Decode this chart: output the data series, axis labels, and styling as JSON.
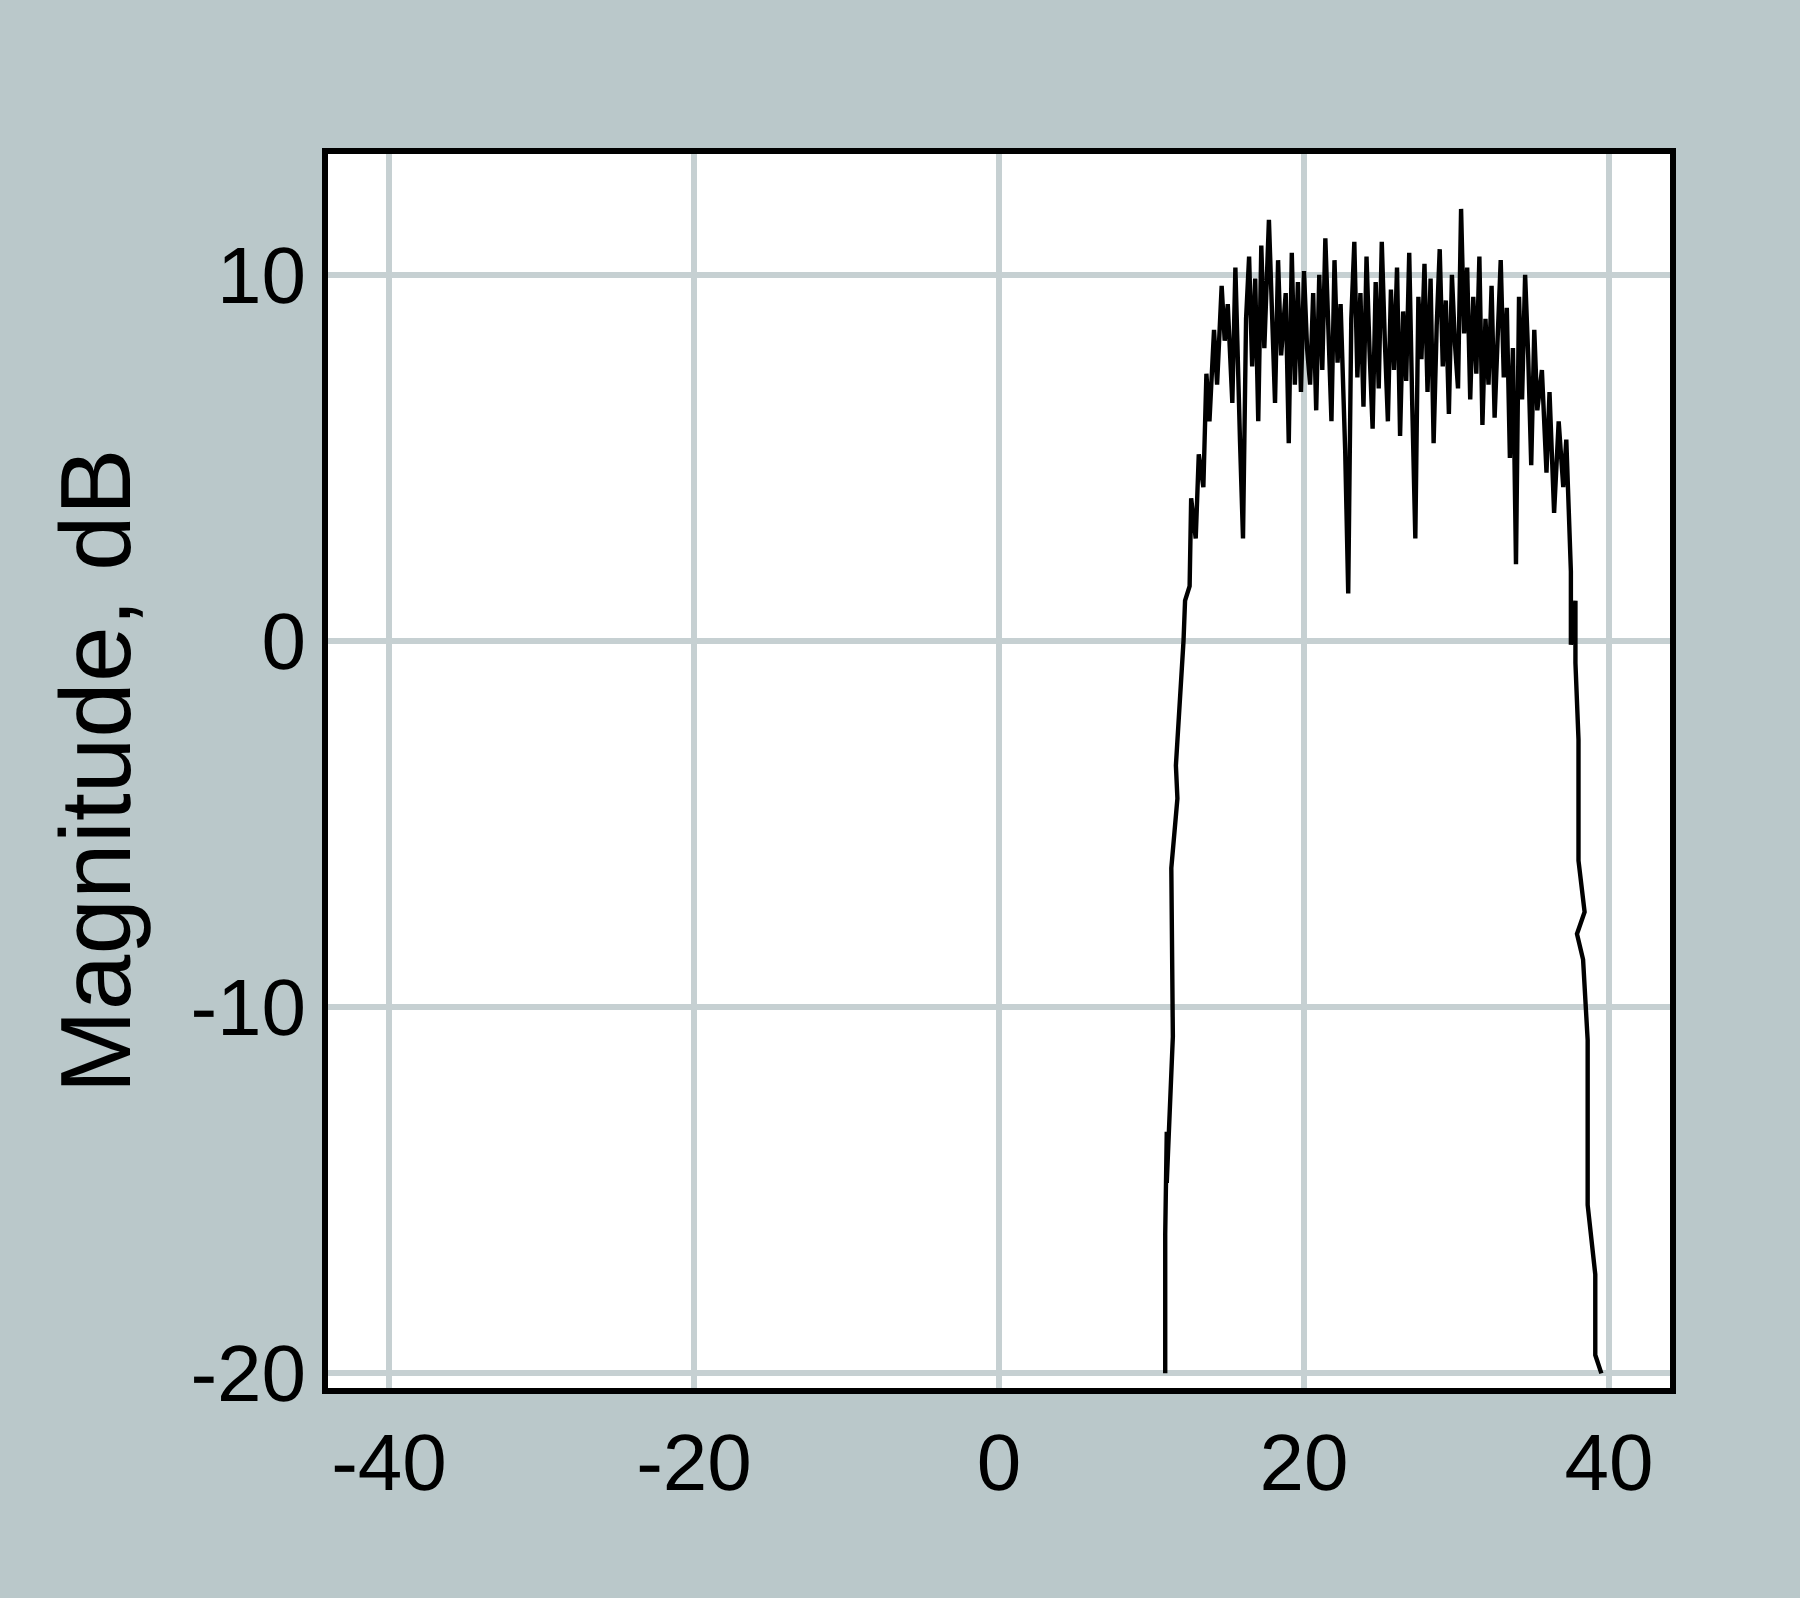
{
  "chart_data": {
    "type": "line",
    "ylabel": "Magnitude, dB",
    "x": [
      10.9,
      10.9,
      11.0,
      11.0,
      11.4,
      11.3,
      11.7,
      11.6,
      12.1,
      12.2,
      12.5,
      12.6,
      12.9,
      13.1,
      13.4,
      13.6,
      13.8,
      14.1,
      14.3,
      14.6,
      14.8,
      15.0,
      15.3,
      15.5,
      15.8,
      16.0,
      16.2,
      16.4,
      16.6,
      16.8,
      17.0,
      17.2,
      17.4,
      17.7,
      17.9,
      18.1,
      18.3,
      18.5,
      18.8,
      19.0,
      19.2,
      19.4,
      19.6,
      19.8,
      20.0,
      20.2,
      20.4,
      20.6,
      20.8,
      21.0,
      21.2,
      21.4,
      21.6,
      21.8,
      22.0,
      22.2,
      22.4,
      22.7,
      22.9,
      23.1,
      23.3,
      23.5,
      23.7,
      23.9,
      24.1,
      24.3,
      24.5,
      24.7,
      24.9,
      25.1,
      25.3,
      25.5,
      25.7,
      25.9,
      26.1,
      26.3,
      26.5,
      26.7,
      26.9,
      27.1,
      27.3,
      27.5,
      27.7,
      27.9,
      28.1,
      28.3,
      28.5,
      28.7,
      28.9,
      29.1,
      29.3,
      29.5,
      29.7,
      29.9,
      30.1,
      30.3,
      30.5,
      30.7,
      30.9,
      31.1,
      31.3,
      31.5,
      31.7,
      31.9,
      32.1,
      32.3,
      32.5,
      32.7,
      32.9,
      33.1,
      33.3,
      33.5,
      33.7,
      33.9,
      34.1,
      34.3,
      34.5,
      34.7,
      34.9,
      35.1,
      35.3,
      35.6,
      35.9,
      36.1,
      36.4,
      36.7,
      37.0,
      37.2,
      37.5,
      37.5,
      37.8,
      37.8,
      38.0,
      38.0,
      38.0,
      38.4,
      37.9,
      38.3,
      38.6,
      38.6,
      39.1,
      39.1,
      39.5
    ],
    "series": [
      {
        "color": "#000000",
        "values": [
          -20,
          -16.2,
          -13.4,
          -14.8,
          -10.8,
          -6.2,
          -4.3,
          -3.4,
          0,
          1.1,
          1.5,
          3.9,
          2.8,
          5.1,
          4.2,
          7.3,
          6.0,
          8.5,
          7.0,
          9.7,
          8.2,
          9.2,
          6.5,
          10.2,
          5.5,
          2.8,
          8.8,
          10.5,
          7.5,
          9.9,
          6.0,
          10.8,
          8.0,
          11.5,
          9.0,
          6.5,
          10.4,
          7.8,
          9.5,
          5.4,
          10.6,
          7.0,
          9.8,
          6.8,
          10.1,
          8.0,
          7.0,
          9.5,
          6.3,
          10.0,
          7.4,
          11.0,
          8.5,
          6.0,
          10.4,
          7.6,
          9.2,
          5.2,
          1.3,
          8.8,
          10.9,
          7.2,
          9.5,
          6.4,
          10.5,
          7.9,
          5.8,
          9.8,
          6.9,
          10.9,
          8.2,
          6.0,
          9.6,
          7.4,
          10.2,
          5.6,
          9.0,
          7.1,
          10.6,
          6.4,
          2.8,
          9.4,
          7.7,
          10.3,
          6.8,
          9.9,
          5.4,
          8.6,
          10.7,
          7.5,
          9.3,
          6.2,
          10.0,
          8.1,
          6.9,
          11.8,
          8.4,
          10.2,
          6.6,
          9.4,
          7.3,
          10.5,
          5.9,
          8.8,
          7.0,
          9.7,
          6.1,
          8.3,
          10.4,
          7.2,
          9.1,
          5.0,
          8.0,
          2.1,
          9.4,
          6.6,
          10.0,
          7.8,
          4.8,
          8.5,
          6.3,
          7.4,
          4.6,
          6.8,
          3.5,
          6.0,
          4.2,
          5.5,
          1.9,
          -0.1,
          1.1,
          -0.6,
          -2.7,
          -4.3,
          -6.0,
          -7.4,
          -8.0,
          -8.7,
          -10.9,
          -15.4,
          -17.3,
          -19.5,
          -20
        ]
      }
    ],
    "xlim": [
      -44,
      44
    ],
    "ylim": [
      -20.4,
      13.3
    ],
    "xticks": [
      -40,
      -20,
      0,
      20,
      40
    ],
    "yticks": [
      -20,
      -10,
      0,
      10
    ],
    "grid": true
  }
}
